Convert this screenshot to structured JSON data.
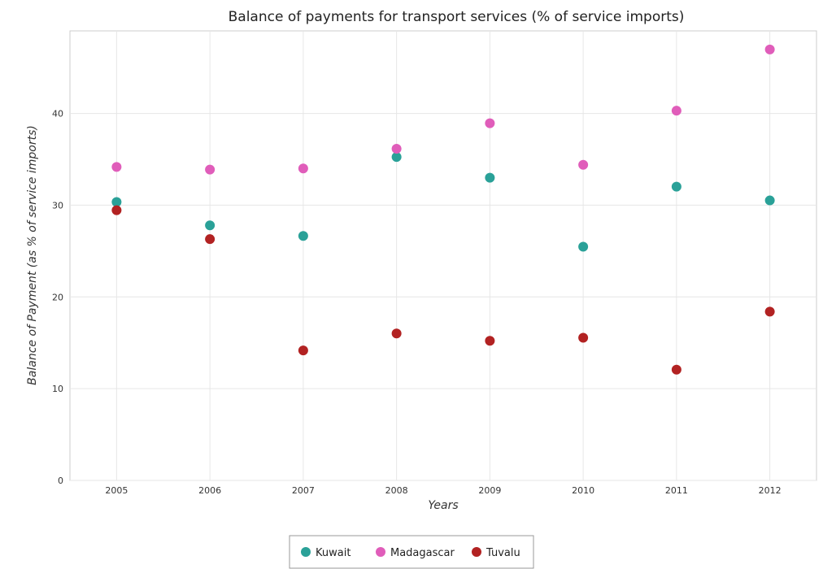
{
  "chart_data": {
    "type": "scatter",
    "title": "Balance of payments for transport services (% of service imports)",
    "xlabel": "Years",
    "ylabel": "Balance of Payment (as % of service imports)",
    "categories": [
      "2005",
      "2006",
      "2007",
      "2008",
      "2009",
      "2010",
      "2011",
      "2012"
    ],
    "ylim": [
      0,
      49
    ],
    "yticks": [
      "0",
      "10",
      "20",
      "30",
      "40"
    ],
    "grid": true,
    "legend_position": "bottom-center",
    "series": [
      {
        "name": "Kuwait",
        "color": "#2aa198",
        "values": [
          30.35,
          27.8,
          26.65,
          35.25,
          33.0,
          25.47,
          32.02,
          30.52
        ]
      },
      {
        "name": "Madagascar",
        "color": "#e05dba",
        "values": [
          34.17,
          33.88,
          34.0,
          36.15,
          38.93,
          34.4,
          40.3,
          46.97
        ]
      },
      {
        "name": "Tuvalu",
        "color": "#b22222",
        "values": [
          29.45,
          26.3,
          14.17,
          16.02,
          15.22,
          15.55,
          12.07,
          18.4
        ]
      }
    ]
  }
}
